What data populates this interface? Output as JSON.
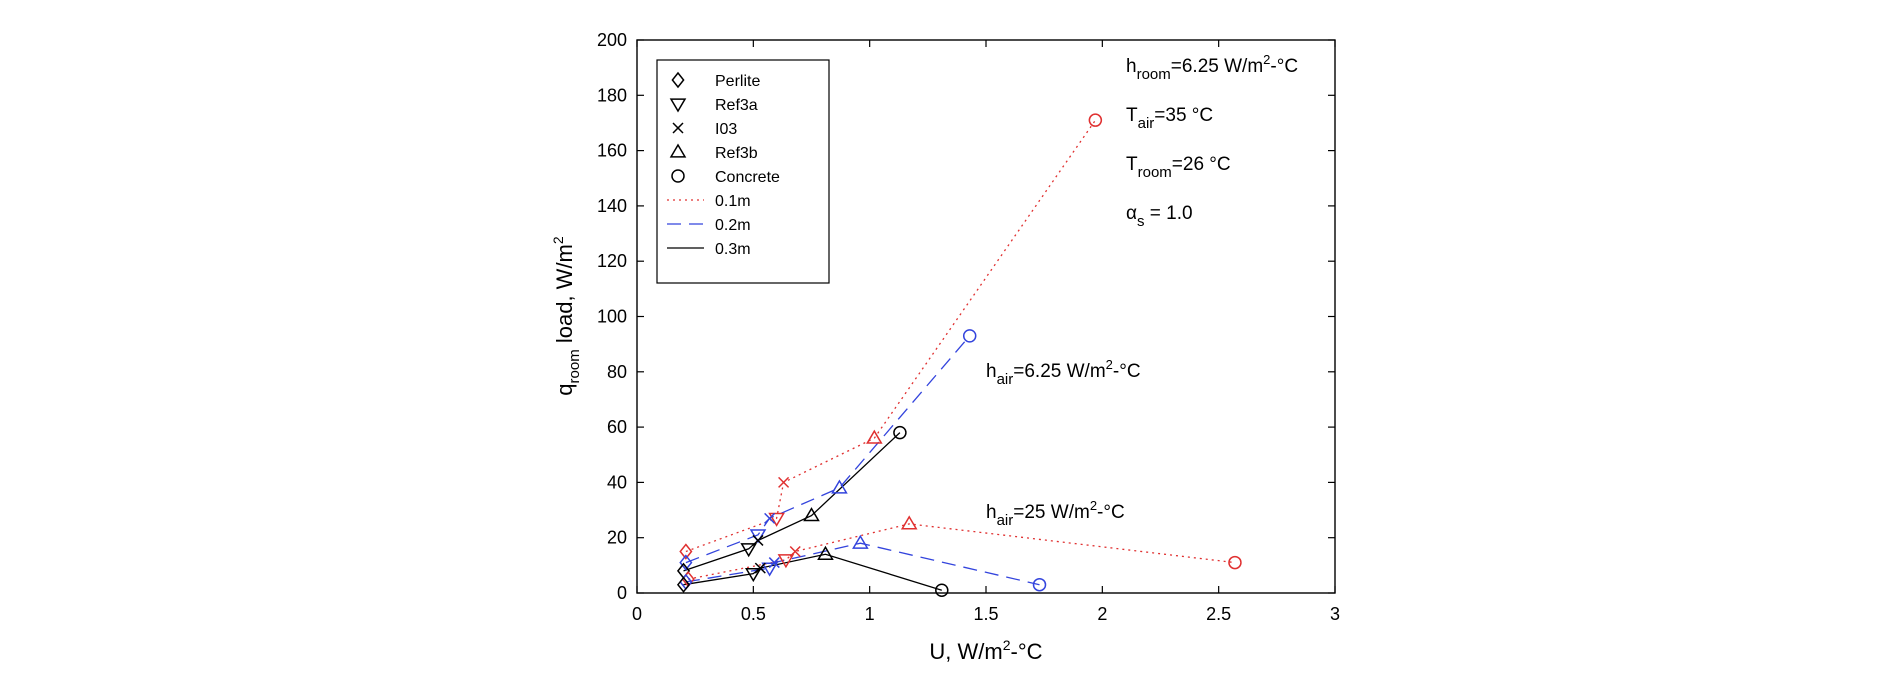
{
  "chart_data": {
    "type": "scatter",
    "title": "",
    "xlabel": {
      "main": "U, W/m",
      "sup": "2",
      "rest": "-°C"
    },
    "ylabel": {
      "q": "q",
      "sub": "room",
      "rest": " load, W/m",
      "sup": "2"
    },
    "xlim": [
      0,
      3
    ],
    "ylim": [
      0,
      200
    ],
    "xticks": [
      0,
      0.5,
      1,
      1.5,
      2,
      2.5,
      3
    ],
    "xtick_labels": [
      "0",
      "0.5",
      "1",
      "1.5",
      "2",
      "2.5",
      "3"
    ],
    "yticks": [
      0,
      20,
      40,
      60,
      80,
      100,
      120,
      140,
      160,
      180,
      200
    ],
    "ytick_labels": [
      "0",
      "20",
      "40",
      "60",
      "80",
      "100",
      "120",
      "140",
      "160",
      "180",
      "200"
    ],
    "materials": [
      "Perlite",
      "Ref3a",
      "I03",
      "Ref3b",
      "Concrete"
    ],
    "markers": [
      "diamond",
      "triangle-down",
      "x",
      "triangle-up",
      "circle"
    ],
    "thickness_legend": [
      {
        "label": "0.1m",
        "color": "#e03030",
        "dash": "dotted"
      },
      {
        "label": "0.2m",
        "color": "#3344dd",
        "dash": "dashed"
      },
      {
        "label": "0.3m",
        "color": "#000000",
        "dash": "solid"
      }
    ],
    "series": [
      {
        "group": "h_air=6.25",
        "thickness": "0.1m",
        "color": "#e03030",
        "dash": "dotted",
        "x": [
          0.21,
          0.6,
          0.63,
          1.02,
          1.97
        ],
        "y": [
          15,
          27,
          40,
          56,
          171
        ]
      },
      {
        "group": "h_air=6.25",
        "thickness": "0.2m",
        "color": "#3344dd",
        "dash": "dashed",
        "x": [
          0.21,
          0.52,
          0.57,
          0.87,
          1.43
        ],
        "y": [
          11,
          21,
          27,
          38,
          93
        ]
      },
      {
        "group": "h_air=6.25",
        "thickness": "0.3m",
        "color": "#000000",
        "dash": "solid",
        "x": [
          0.2,
          0.48,
          0.52,
          0.75,
          1.13
        ],
        "y": [
          8,
          16,
          19,
          28,
          58
        ]
      },
      {
        "group": "h_air=25",
        "thickness": "0.1m",
        "color": "#e03030",
        "dash": "dotted",
        "x": [
          0.22,
          0.64,
          0.68,
          1.17,
          2.57
        ],
        "y": [
          5,
          12,
          15,
          25,
          11
        ]
      },
      {
        "group": "h_air=25",
        "thickness": "0.2m",
        "color": "#3344dd",
        "dash": "dashed",
        "x": [
          0.21,
          0.57,
          0.59,
          0.96,
          1.73
        ],
        "y": [
          4,
          9,
          11,
          18,
          3
        ]
      },
      {
        "group": "h_air=25",
        "thickness": "0.3m",
        "color": "#000000",
        "dash": "solid",
        "x": [
          0.2,
          0.5,
          0.53,
          0.81,
          1.31
        ],
        "y": [
          3,
          7,
          9,
          14,
          1
        ]
      }
    ],
    "annotations": {
      "h_room": {
        "main": "h",
        "sub": "room",
        "rest": "=6.25 W/m",
        "sup": "2",
        "tail": "-°C"
      },
      "t_air": {
        "main": "T",
        "sub": "air",
        "rest": "=35 °C"
      },
      "t_room": {
        "main": "T",
        "sub": "room",
        "rest": "=26 °C"
      },
      "alpha_s": {
        "main": "α",
        "sub": "s",
        "rest": " = 1.0"
      },
      "h_air_low": {
        "main": "h",
        "sub": "air",
        "rest": "=6.25 W/m",
        "sup": "2",
        "tail": "-°C"
      },
      "h_air_high": {
        "main": "h",
        "sub": "air",
        "rest": "=25 W/m",
        "sup": "2",
        "tail": "-°C"
      }
    },
    "legend_position": "top-left",
    "grid": false
  }
}
